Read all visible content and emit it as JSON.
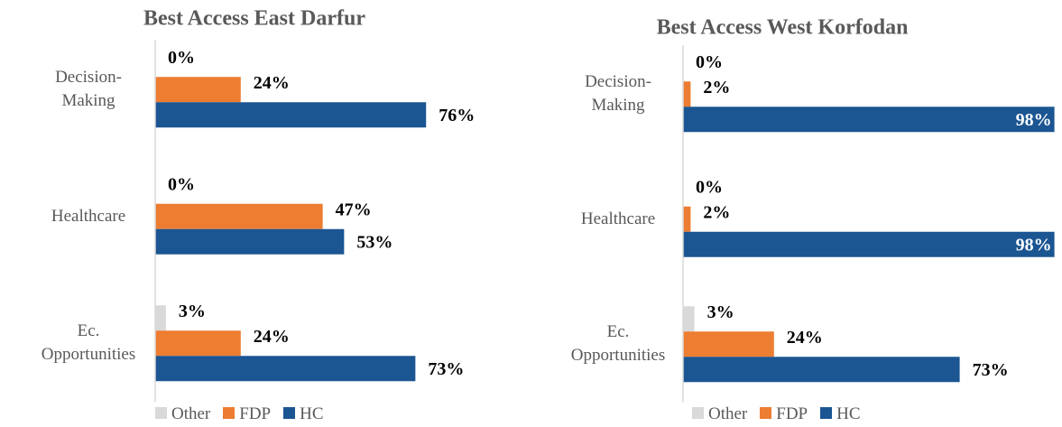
{
  "chart_data": [
    {
      "type": "bar",
      "orientation": "horizontal",
      "title": "Best Access East Darfur",
      "categories": [
        "Decision-Making",
        "Healthcare",
        "Ec. Opportunities"
      ],
      "xlim": [
        0,
        100
      ],
      "legend": "bottom",
      "series": [
        {
          "name": "Other",
          "color": "#d9d9d9",
          "values": [
            0,
            0,
            3
          ],
          "value_labels": [
            "0%",
            "0%",
            "3%"
          ]
        },
        {
          "name": "FDP",
          "color": "#ed7d31",
          "values": [
            24,
            47,
            24
          ],
          "value_labels": [
            "24%",
            "47%",
            "24%"
          ]
        },
        {
          "name": "HC",
          "color": "#1b5592",
          "values": [
            76,
            53,
            73
          ],
          "value_labels": [
            "76%",
            "53%",
            "73%"
          ]
        }
      ]
    },
    {
      "type": "bar",
      "orientation": "horizontal",
      "title": "Best Access West Korfodan",
      "categories": [
        "Decision-Making",
        "Healthcare",
        "Ec. Opportunities"
      ],
      "xlim": [
        0,
        100
      ],
      "legend": "bottom",
      "series": [
        {
          "name": "Other",
          "color": "#d9d9d9",
          "values": [
            0,
            0,
            3
          ],
          "value_labels": [
            "0%",
            "0%",
            "3%"
          ]
        },
        {
          "name": "FDP",
          "color": "#ed7d31",
          "values": [
            2,
            2,
            24
          ],
          "value_labels": [
            "2%",
            "2%",
            "24%"
          ]
        },
        {
          "name": "HC",
          "color": "#1b5592",
          "values": [
            98,
            98,
            73
          ],
          "value_labels": [
            "98%",
            "98%",
            "73%"
          ]
        }
      ]
    }
  ]
}
